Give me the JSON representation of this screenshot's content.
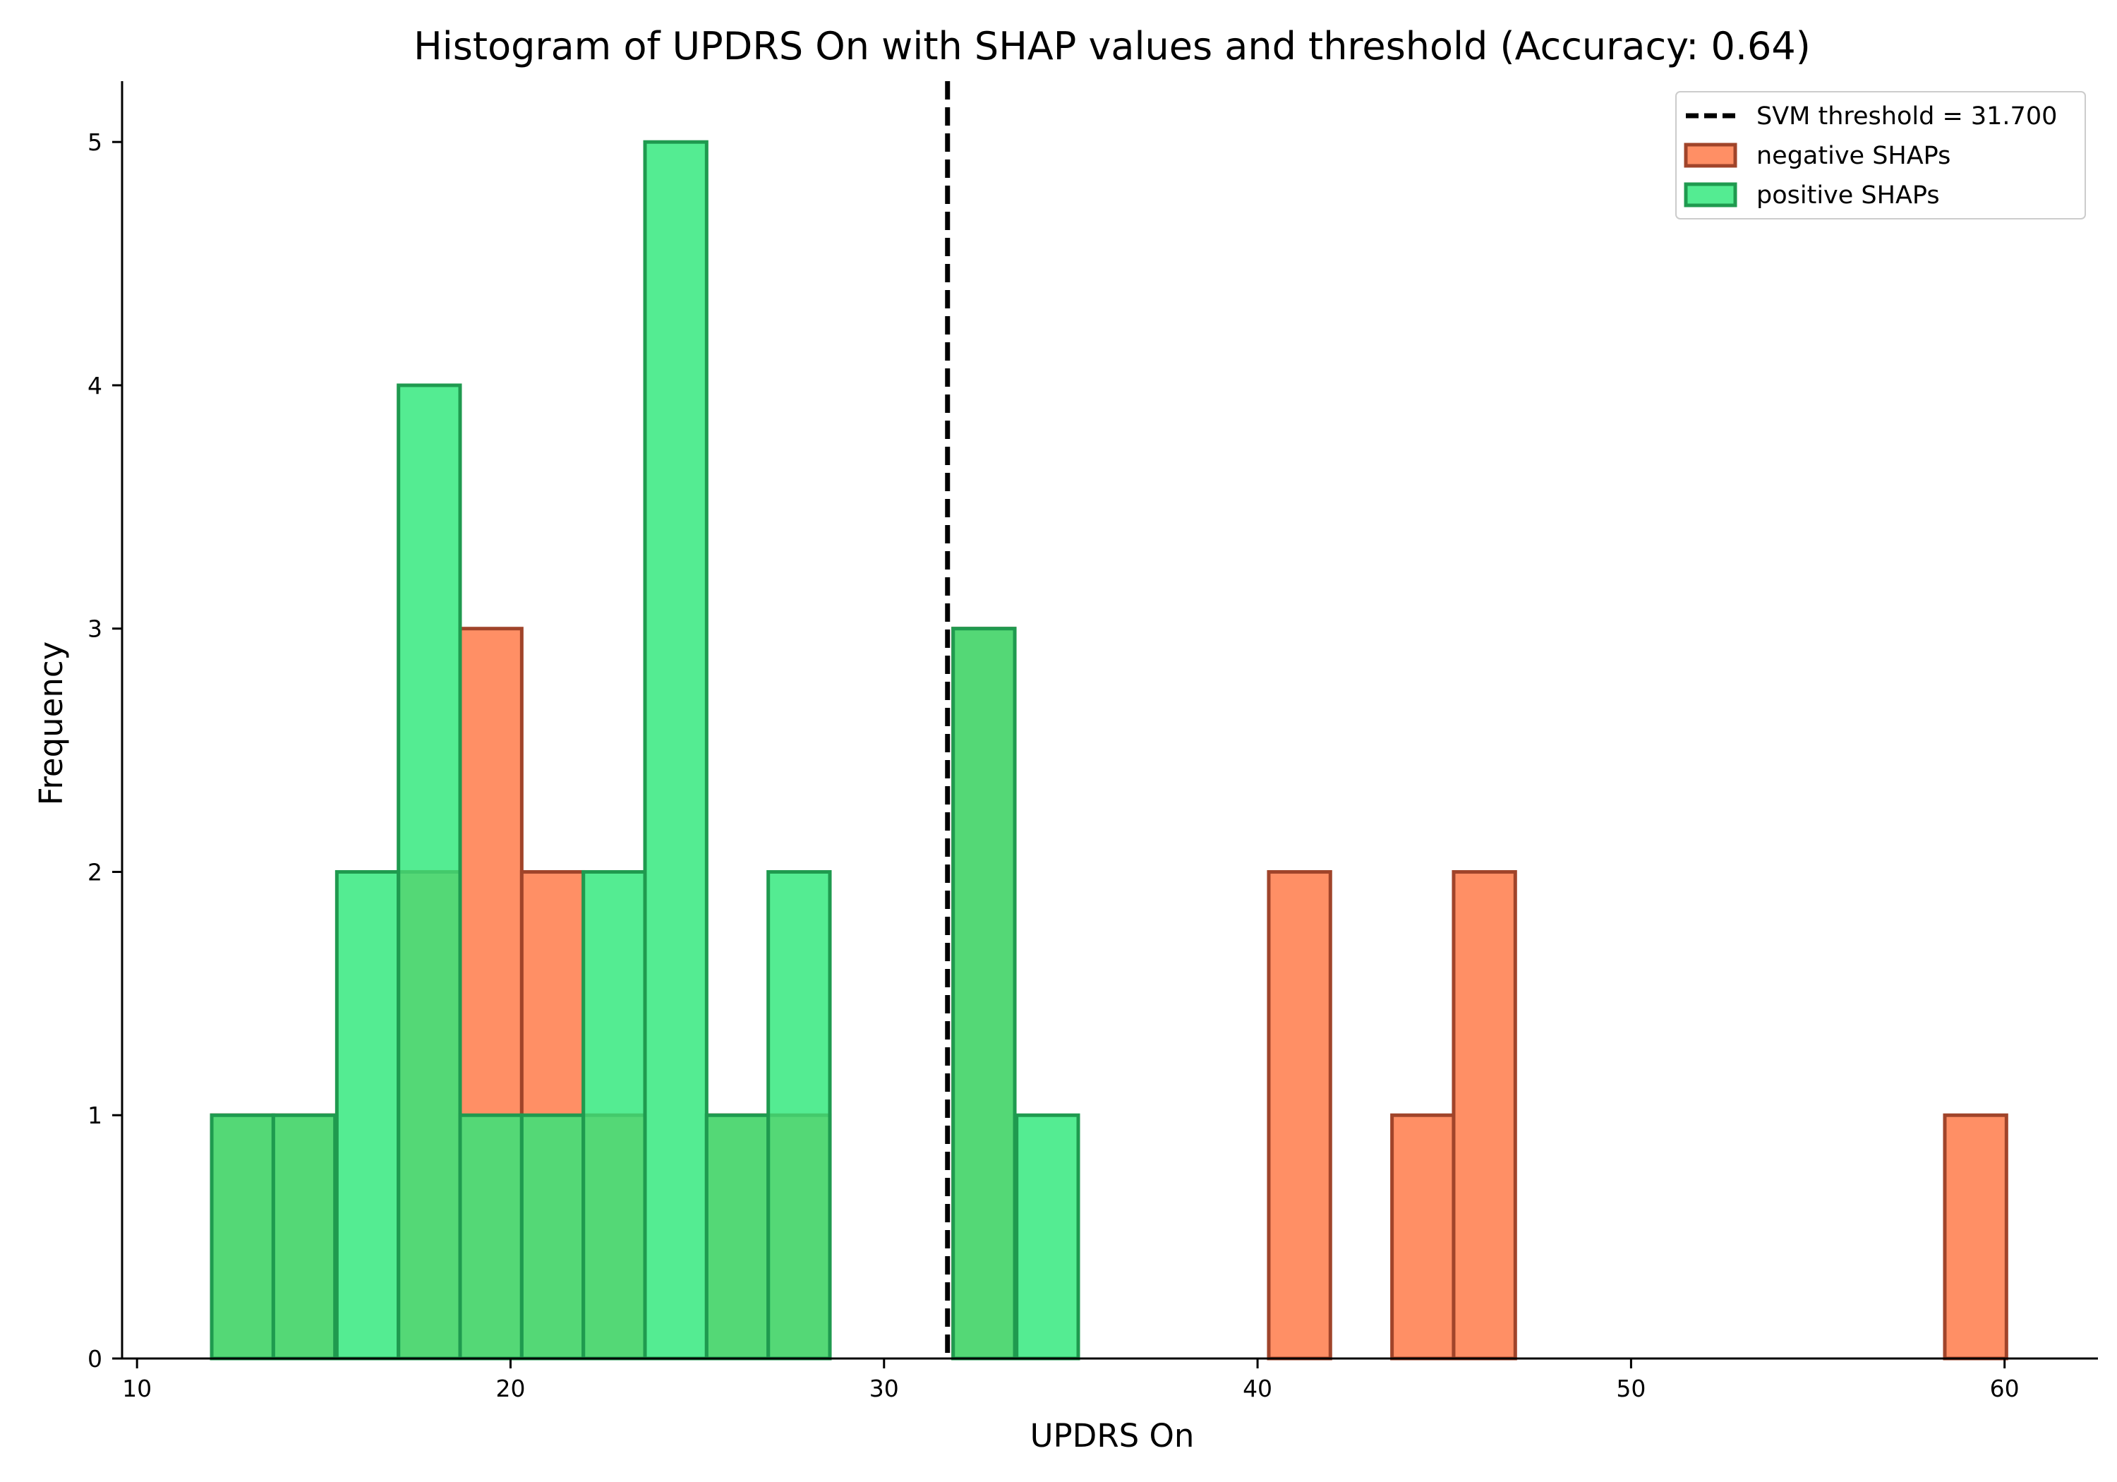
{
  "chart_data": {
    "type": "histogram",
    "title": "Histogram of UPDRS On with SHAP values and threshold (Accuracy: 0.64)",
    "xlabel": "UPDRS On",
    "ylabel": "Frequency",
    "xlim": [
      9.6,
      62.5
    ],
    "ylim": [
      0,
      5.25
    ],
    "xticks": [
      10,
      20,
      30,
      40,
      50,
      60
    ],
    "yticks": [
      0,
      1,
      2,
      3,
      4,
      5
    ],
    "grid": false,
    "legend_position": "upper right",
    "threshold": {
      "value": 31.7,
      "label": "SVM threshold = 31.700",
      "color": "#000000",
      "style": "dashed"
    },
    "series": [
      {
        "name": "negative SHAPs",
        "color": "#ff7f50",
        "edge_color": "#a0442a",
        "opacity": 0.88,
        "bin_width": 1.65,
        "bins": [
          {
            "start": 12.0,
            "count": 1
          },
          {
            "start": 13.65,
            "count": 1
          },
          {
            "start": 17.0,
            "count": 2
          },
          {
            "start": 18.65,
            "count": 3
          },
          {
            "start": 20.3,
            "count": 2
          },
          {
            "start": 21.95,
            "count": 1
          },
          {
            "start": 25.25,
            "count": 1
          },
          {
            "start": 26.9,
            "count": 1
          },
          {
            "start": 31.85,
            "count": 3
          },
          {
            "start": 40.3,
            "count": 2
          },
          {
            "start": 43.6,
            "count": 1
          },
          {
            "start": 45.25,
            "count": 2
          },
          {
            "start": 58.4,
            "count": 1
          }
        ]
      },
      {
        "name": "positive SHAPs",
        "color": "#2ee87a",
        "edge_color": "#1f9a4f",
        "opacity": 0.82,
        "bin_width": 1.65,
        "bins": [
          {
            "start": 12.0,
            "count": 1
          },
          {
            "start": 13.65,
            "count": 1
          },
          {
            "start": 15.35,
            "count": 2
          },
          {
            "start": 17.0,
            "count": 4
          },
          {
            "start": 18.65,
            "count": 1
          },
          {
            "start": 20.3,
            "count": 1
          },
          {
            "start": 21.95,
            "count": 2
          },
          {
            "start": 23.6,
            "count": 5
          },
          {
            "start": 25.25,
            "count": 1
          },
          {
            "start": 26.9,
            "count": 2
          },
          {
            "start": 31.85,
            "count": 3
          },
          {
            "start": 33.55,
            "count": 1
          }
        ]
      }
    ]
  }
}
